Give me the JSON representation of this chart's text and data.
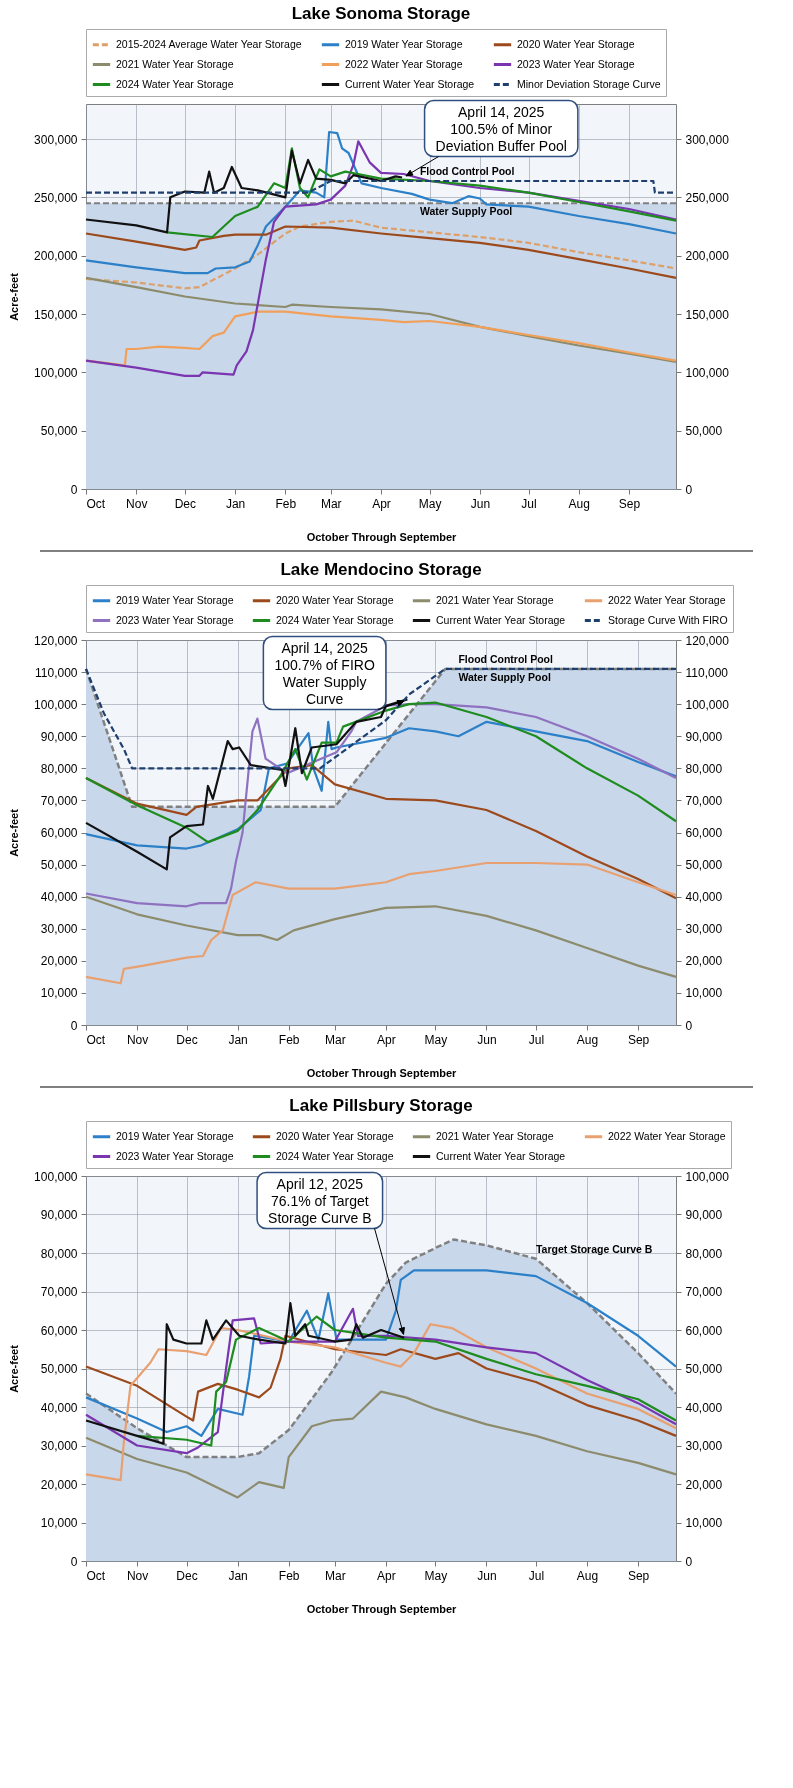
{
  "chart_data": [
    {
      "type": "line",
      "title": "Lake Sonoma Storage",
      "xlabel": "October Through September",
      "ylabel": "Acre-feet",
      "legend": "top",
      "grid": true,
      "xlim": [
        "2024-10-01",
        "2025-09-30"
      ],
      "xticks": [
        {
          "value": "2024-10-01",
          "label": "Oct"
        },
        {
          "value": "2024-11-01",
          "label": "Nov"
        },
        {
          "value": "2024-12-01",
          "label": "Dec"
        },
        {
          "value": "2025-01-01",
          "label": "Jan"
        },
        {
          "value": "2025-02-01",
          "label": "Feb"
        },
        {
          "value": "2025-03-01",
          "label": "Mar"
        },
        {
          "value": "2025-04-01",
          "label": "Apr"
        },
        {
          "value": "2025-05-01",
          "label": "May"
        },
        {
          "value": "2025-06-01",
          "label": "Jun"
        },
        {
          "value": "2025-07-01",
          "label": "Jul"
        },
        {
          "value": "2025-08-01",
          "label": "Aug"
        },
        {
          "value": "2025-09-01",
          "label": "Sep"
        }
      ],
      "ylim": [
        0,
        330000
      ],
      "yticks": [
        {
          "value": 0,
          "label": "0"
        },
        {
          "value": 50000,
          "label": "50,000"
        },
        {
          "value": 100000,
          "label": "100,000"
        },
        {
          "value": 150000,
          "label": "150,000"
        },
        {
          "value": 200000,
          "label": "200,000"
        },
        {
          "value": 250000,
          "label": "250,000"
        },
        {
          "value": 300000,
          "label": "300,000"
        }
      ],
      "y2lim": [
        0,
        330000
      ],
      "y2ticks": [
        {
          "value": 0,
          "label": "0"
        },
        {
          "value": 50000,
          "label": "50,000"
        },
        {
          "value": 100000,
          "label": "100,000"
        },
        {
          "value": 150000,
          "label": "150,000"
        },
        {
          "value": 200000,
          "label": "200,000"
        },
        {
          "value": 250000,
          "label": "250,000"
        },
        {
          "value": 300000,
          "label": "300,000"
        }
      ],
      "bands": [
        {
          "axis": "y",
          "from": 0,
          "to": 245000,
          "color": "#c9d7ea"
        }
      ],
      "ref_lines": [
        {
          "axis": "y",
          "value": 245000,
          "color": "#808080",
          "line_style": "dashed"
        }
      ],
      "series": [
        {
          "name": "2015-2024 Average Water Year Storage",
          "color": "#dda06a",
          "line_style": "dashed",
          "x": [
            "2024-10-01",
            "2024-11-01",
            "2024-12-01",
            "2024-12-10",
            "2025-01-01",
            "2025-01-15",
            "2025-02-01",
            "2025-02-10",
            "2025-03-01",
            "2025-03-15",
            "2025-04-01",
            "2025-05-01",
            "2025-06-01",
            "2025-07-01",
            "2025-08-01",
            "2025-09-01",
            "2025-09-30"
          ],
          "values": [
            180000,
            177000,
            172000,
            173000,
            189000,
            201000,
            219000,
            225000,
            229000,
            230000,
            224000,
            220000,
            216000,
            211000,
            203000,
            196000,
            189000
          ]
        },
        {
          "name": "2019 Water Year Storage",
          "color": "#2c80c8",
          "x": [
            "2024-10-01",
            "2024-11-01",
            "2024-12-01",
            "2024-12-15",
            "2024-12-20",
            "2025-01-01",
            "2025-01-10",
            "2025-01-15",
            "2025-01-20",
            "2025-02-01",
            "2025-02-10",
            "2025-02-20",
            "2025-02-25",
            "2025-02-28",
            "2025-03-05",
            "2025-03-08",
            "2025-03-12",
            "2025-03-20",
            "2025-04-01",
            "2025-04-20",
            "2025-05-01",
            "2025-05-15",
            "2025-05-25",
            "2025-06-01",
            "2025-06-05",
            "2025-07-01",
            "2025-08-01",
            "2025-09-01",
            "2025-09-30"
          ],
          "values": [
            196000,
            190000,
            185000,
            185000,
            189000,
            190000,
            195000,
            209000,
            225000,
            242000,
            256000,
            254000,
            250000,
            306000,
            305000,
            292000,
            288000,
            262000,
            258000,
            253000,
            248000,
            245000,
            251000,
            249000,
            244000,
            242000,
            234000,
            227000,
            219000
          ]
        },
        {
          "name": "2020 Water Year Storage",
          "color": "#9c4a1c",
          "x": [
            "2024-10-01",
            "2024-11-01",
            "2024-12-01",
            "2024-12-08",
            "2024-12-10",
            "2024-12-25",
            "2025-01-01",
            "2025-01-20",
            "2025-02-01",
            "2025-03-01",
            "2025-04-01",
            "2025-05-01",
            "2025-06-01",
            "2025-07-01",
            "2025-08-01",
            "2025-09-01",
            "2025-09-30"
          ],
          "values": [
            219000,
            212000,
            205000,
            207000,
            213000,
            217000,
            218000,
            218000,
            225000,
            224000,
            219000,
            215000,
            211000,
            205000,
            197000,
            189000,
            181000
          ]
        },
        {
          "name": "2021 Water Year Storage",
          "color": "#8c8c6c",
          "x": [
            "2024-10-01",
            "2024-11-01",
            "2024-12-01",
            "2025-01-01",
            "2025-02-01",
            "2025-02-05",
            "2025-03-01",
            "2025-04-01",
            "2025-05-01",
            "2025-06-01",
            "2025-07-01",
            "2025-08-01",
            "2025-09-01",
            "2025-09-30"
          ],
          "values": [
            181000,
            173000,
            165000,
            159000,
            156000,
            158000,
            156000,
            154000,
            150000,
            139000,
            131000,
            123000,
            116000,
            109000
          ]
        },
        {
          "name": "2022 Water Year Storage",
          "color": "#f0a05a",
          "x": [
            "2024-10-01",
            "2024-10-25",
            "2024-10-26",
            "2024-11-01",
            "2024-11-15",
            "2024-12-01",
            "2024-12-10",
            "2024-12-18",
            "2024-12-25",
            "2025-01-01",
            "2025-01-15",
            "2025-02-01",
            "2025-03-01",
            "2025-04-01",
            "2025-04-15",
            "2025-05-01",
            "2025-06-01",
            "2025-07-01",
            "2025-08-01",
            "2025-09-01",
            "2025-09-30"
          ],
          "values": [
            110000,
            106000,
            120000,
            120000,
            122000,
            121000,
            120000,
            131000,
            134000,
            148000,
            152000,
            152000,
            148000,
            145000,
            143000,
            144000,
            139000,
            132000,
            125000,
            117000,
            110000
          ]
        },
        {
          "name": "2023 Water Year Storage",
          "color": "#7a35b0",
          "x": [
            "2024-10-01",
            "2024-11-01",
            "2024-12-01",
            "2024-12-10",
            "2024-12-12",
            "2024-12-31",
            "2025-01-02",
            "2025-01-08",
            "2025-01-12",
            "2025-01-20",
            "2025-01-25",
            "2025-02-01",
            "2025-02-20",
            "2025-03-01",
            "2025-03-10",
            "2025-03-15",
            "2025-03-18",
            "2025-03-25",
            "2025-04-01",
            "2025-04-15",
            "2025-05-01",
            "2025-06-01",
            "2025-07-01",
            "2025-08-01",
            "2025-09-01",
            "2025-09-30"
          ],
          "values": [
            110000,
            104000,
            97000,
            97000,
            100000,
            98000,
            106000,
            118000,
            136000,
            197000,
            229000,
            242000,
            244000,
            248000,
            260000,
            278000,
            298000,
            280000,
            271000,
            270000,
            264000,
            258000,
            254000,
            247000,
            240000,
            231000
          ]
        },
        {
          "name": "2024 Water Year Storage",
          "color": "#1e8c1e",
          "x": [
            "2024-11-20",
            "2024-12-18",
            "2024-12-25",
            "2025-01-01",
            "2025-01-15",
            "2025-01-25",
            "2025-02-01",
            "2025-02-05",
            "2025-02-10",
            "2025-02-15",
            "2025-02-22",
            "2025-03-01",
            "2025-03-10",
            "2025-04-01",
            "2025-05-01",
            "2025-06-01",
            "2025-07-01",
            "2025-08-01",
            "2025-09-01",
            "2025-09-30"
          ],
          "values": [
            220000,
            216000,
            225000,
            234000,
            242000,
            262000,
            258000,
            292000,
            258000,
            250000,
            274000,
            268000,
            272000,
            266000,
            264000,
            260000,
            254000,
            246000,
            238000,
            230000
          ]
        },
        {
          "name": "Current Water Year Storage",
          "color": "#111111",
          "x": [
            "2024-10-01",
            "2024-11-01",
            "2024-11-20",
            "2024-11-22",
            "2024-12-01",
            "2024-12-13",
            "2024-12-16",
            "2024-12-19",
            "2024-12-25",
            "2024-12-30",
            "2025-01-05",
            "2025-01-15",
            "2025-02-01",
            "2025-02-05",
            "2025-02-10",
            "2025-02-15",
            "2025-02-20",
            "2025-03-01",
            "2025-03-10",
            "2025-03-15",
            "2025-04-01",
            "2025-04-10",
            "2025-04-14"
          ],
          "values": [
            231000,
            226000,
            220000,
            250000,
            255000,
            254000,
            272000,
            254000,
            258000,
            276000,
            258000,
            256000,
            250000,
            290000,
            262000,
            282000,
            266000,
            265000,
            262000,
            269000,
            264000,
            268000,
            267000
          ]
        },
        {
          "name": "Minor Deviation Storage Curve",
          "color": "#1f3f6e",
          "line_style": "dashed",
          "x": [
            "2024-10-01",
            "2025-02-15",
            "2025-03-01",
            "2025-09-16",
            "2025-09-17",
            "2025-09-30"
          ],
          "values": [
            254000,
            254000,
            264000,
            264000,
            254000,
            254000
          ]
        }
      ],
      "annotations": [
        {
          "text": "April 14, 2025\n100.5% of Minor\nDeviation Buffer Pool",
          "x": "2025-04-14",
          "y": 267000
        },
        {
          "text": "Flood Control Pool",
          "x": "2025-04-25",
          "y": 264000
        },
        {
          "text": "Water Supply Pool",
          "x": "2025-04-25",
          "y": 245000
        }
      ]
    },
    {
      "type": "line",
      "title": "Lake Mendocino Storage",
      "xlabel": "October Through September",
      "ylabel": "Acre-feet",
      "legend": "top",
      "grid": true,
      "xlim": [
        "2024-10-01",
        "2025-09-24"
      ],
      "xticks": [
        {
          "value": "2024-10-01",
          "label": "Oct"
        },
        {
          "value": "2024-11-01",
          "label": "Nov"
        },
        {
          "value": "2024-12-01",
          "label": "Dec"
        },
        {
          "value": "2025-01-01",
          "label": "Jan"
        },
        {
          "value": "2025-02-01",
          "label": "Feb"
        },
        {
          "value": "2025-03-01",
          "label": "Mar"
        },
        {
          "value": "2025-04-01",
          "label": "Apr"
        },
        {
          "value": "2025-05-01",
          "label": "May"
        },
        {
          "value": "2025-06-01",
          "label": "Jun"
        },
        {
          "value": "2025-07-01",
          "label": "Jul"
        },
        {
          "value": "2025-08-01",
          "label": "Aug"
        },
        {
          "value": "2025-09-01",
          "label": "Sep"
        }
      ],
      "ylim": [
        0,
        120000
      ],
      "yticks": [
        {
          "value": 0,
          "label": "0"
        },
        {
          "value": 10000,
          "label": "10,000"
        },
        {
          "value": 20000,
          "label": "20,000"
        },
        {
          "value": 30000,
          "label": "30,000"
        },
        {
          "value": 40000,
          "label": "40,000"
        },
        {
          "value": 50000,
          "label": "50,000"
        },
        {
          "value": 60000,
          "label": "60,000"
        },
        {
          "value": 70000,
          "label": "70,000"
        },
        {
          "value": 80000,
          "label": "80,000"
        },
        {
          "value": 90000,
          "label": "90,000"
        },
        {
          "value": 100000,
          "label": "100,000"
        },
        {
          "value": 110000,
          "label": "110,000"
        },
        {
          "value": 120000,
          "label": "120,000"
        }
      ],
      "y2lim": [
        0,
        120000
      ],
      "y2ticks": [
        {
          "value": 0,
          "label": "0"
        },
        {
          "value": 10000,
          "label": "10,000"
        },
        {
          "value": 20000,
          "label": "20,000"
        },
        {
          "value": 30000,
          "label": "30,000"
        },
        {
          "value": 40000,
          "label": "40,000"
        },
        {
          "value": 50000,
          "label": "50,000"
        },
        {
          "value": 60000,
          "label": "60,000"
        },
        {
          "value": 70000,
          "label": "70,000"
        },
        {
          "value": 80000,
          "label": "80,000"
        },
        {
          "value": 90000,
          "label": "90,000"
        },
        {
          "value": 100000,
          "label": "100,000"
        },
        {
          "value": 110000,
          "label": "110,000"
        },
        {
          "value": 120000,
          "label": "120,000"
        }
      ],
      "series": [
        {
          "type": "area",
          "color": "#c9d7ea",
          "line_style": "dashed",
          "x": [
            "2024-10-01",
            "2024-10-29",
            "2025-03-01",
            "2025-05-07",
            "2025-09-24"
          ],
          "values": [
            111000,
            68000,
            68000,
            111000,
            111000
          ]
        },
        {
          "name": "2019 Water Year Storage",
          "color": "#2c80c8",
          "x": [
            "2024-10-01",
            "2024-11-01",
            "2024-12-01",
            "2024-12-10",
            "2025-01-01",
            "2025-01-15",
            "2025-01-20",
            "2025-01-31",
            "2025-02-13",
            "2025-02-16",
            "2025-02-21",
            "2025-02-25",
            "2025-02-27",
            "2025-03-02",
            "2025-04-01",
            "2025-04-15",
            "2025-05-01",
            "2025-05-15",
            "2025-06-01",
            "2025-07-01",
            "2025-08-01",
            "2025-09-01",
            "2025-09-24"
          ],
          "values": [
            59500,
            56000,
            55000,
            56000,
            61000,
            67000,
            80000,
            81500,
            91000,
            80000,
            73000,
            94500,
            86000,
            86500,
            89500,
            92500,
            91500,
            90000,
            94500,
            91500,
            88500,
            82000,
            77500
          ]
        },
        {
          "name": "2020 Water Year Storage",
          "color": "#9c4a1c",
          "x": [
            "2024-10-01",
            "2024-11-01",
            "2024-12-01",
            "2024-12-07",
            "2025-01-01",
            "2025-01-13",
            "2025-02-01",
            "2025-02-15",
            "2025-03-01",
            "2025-04-01",
            "2025-05-01",
            "2025-06-01",
            "2025-07-01",
            "2025-08-01",
            "2025-09-01",
            "2025-09-24"
          ],
          "values": [
            77000,
            69000,
            65500,
            68000,
            70000,
            70000,
            80000,
            81000,
            75000,
            70500,
            70000,
            67000,
            60500,
            52500,
            45500,
            39500
          ]
        },
        {
          "name": "2021 Water Year Storage",
          "color": "#8c8c6c",
          "x": [
            "2024-10-01",
            "2024-11-01",
            "2024-12-01",
            "2025-01-01",
            "2025-01-15",
            "2025-01-25",
            "2025-02-04",
            "2025-03-01",
            "2025-04-01",
            "2025-05-01",
            "2025-06-01",
            "2025-07-01",
            "2025-08-01",
            "2025-09-01",
            "2025-09-24"
          ],
          "values": [
            40000,
            34500,
            31000,
            28000,
            28000,
            26500,
            29500,
            33000,
            36500,
            37000,
            34000,
            29500,
            24000,
            18500,
            15000
          ]
        },
        {
          "name": "2022 Water Year Storage",
          "color": "#e8a070",
          "x": [
            "2024-10-01",
            "2024-10-22",
            "2024-10-24",
            "2024-11-05",
            "2024-12-01",
            "2024-12-11",
            "2024-12-16",
            "2024-12-23",
            "2024-12-29",
            "2025-01-12",
            "2025-02-01",
            "2025-03-01",
            "2025-04-01",
            "2025-04-15",
            "2025-05-01",
            "2025-06-01",
            "2025-07-01",
            "2025-08-01",
            "2025-09-01",
            "2025-09-24"
          ],
          "values": [
            15000,
            13000,
            17500,
            18500,
            21000,
            21500,
            26500,
            29500,
            40500,
            44500,
            42500,
            42500,
            44500,
            47000,
            48000,
            50500,
            50500,
            50000,
            44500,
            40500
          ]
        },
        {
          "name": "2023 Water Year Storage",
          "color": "#8e72c0",
          "x": [
            "2024-10-01",
            "2024-11-01",
            "2024-12-01",
            "2024-12-09",
            "2024-12-25",
            "2024-12-28",
            "2024-12-31",
            "2025-01-04",
            "2025-01-10",
            "2025-01-13",
            "2025-01-18",
            "2025-01-31",
            "2025-03-02",
            "2025-03-11",
            "2025-03-14",
            "2025-04-01",
            "2025-04-15",
            "2025-05-01",
            "2025-06-01",
            "2025-07-01",
            "2025-08-01",
            "2025-09-01",
            "2025-09-24"
          ],
          "values": [
            41000,
            38000,
            37000,
            38000,
            38000,
            42500,
            51000,
            60000,
            91500,
            95500,
            83000,
            78500,
            85000,
            91500,
            94500,
            99500,
            100000,
            100000,
            99000,
            96000,
            90000,
            83000,
            77000
          ]
        },
        {
          "name": "2024 Water Year Storage",
          "color": "#1e8c1e",
          "x": [
            "2024-10-01",
            "2024-11-01",
            "2024-12-01",
            "2024-12-14",
            "2025-01-01",
            "2025-01-13",
            "2025-01-28",
            "2025-02-05",
            "2025-02-12",
            "2025-02-21",
            "2025-03-02",
            "2025-03-06",
            "2025-04-01",
            "2025-04-15",
            "2025-05-01",
            "2025-06-01",
            "2025-07-01",
            "2025-08-01",
            "2025-09-01",
            "2025-09-24"
          ],
          "values": [
            77000,
            68500,
            61500,
            57000,
            60500,
            67000,
            78500,
            86000,
            76500,
            88000,
            88000,
            93000,
            98000,
            100000,
            100500,
            96000,
            90000,
            80000,
            71500,
            63500
          ]
        },
        {
          "name": "Current Water Year Storage",
          "color": "#111111",
          "x": [
            "2024-10-01",
            "2024-11-01",
            "2024-11-19",
            "2024-11-21",
            "2024-12-01",
            "2024-12-11",
            "2024-12-14",
            "2024-12-17",
            "2024-12-26",
            "2024-12-29",
            "2025-01-02",
            "2025-01-09",
            "2025-01-28",
            "2025-01-30",
            "2025-02-05",
            "2025-02-09",
            "2025-02-15",
            "2025-03-02",
            "2025-03-14",
            "2025-03-29",
            "2025-04-01",
            "2025-04-14"
          ],
          "values": [
            63000,
            54000,
            48500,
            58500,
            62000,
            62500,
            74500,
            70500,
            88500,
            86000,
            86500,
            81000,
            79500,
            74500,
            92500,
            78500,
            86500,
            87500,
            94500,
            96000,
            99500,
            101500
          ]
        },
        {
          "name": "Storage Curve With FIRO",
          "color": "#1f3f6e",
          "line_style": "dashed",
          "x": [
            "2024-10-01",
            "2024-10-12",
            "2024-10-24",
            "2024-10-29",
            "2025-02-20",
            "2025-04-01",
            "2025-04-15",
            "2025-05-07",
            "2025-09-24"
          ],
          "values": [
            111000,
            97000,
            86000,
            80000,
            80000,
            95000,
            103000,
            111000,
            111000
          ]
        }
      ],
      "annotations": [
        {
          "text": "April 14, 2025\n100.7% of FIRO\nWater Supply\nCurve",
          "x": "2025-04-14",
          "y": 101500
        },
        {
          "text": "Flood Control Pool",
          "x": "2025-05-15",
          "y": 111000
        },
        {
          "text": "Water Supply Pool",
          "x": "2025-05-15",
          "y": 111000
        }
      ]
    },
    {
      "type": "line",
      "title": "Lake Pillsbury Storage",
      "xlabel": "October Through September",
      "ylabel": "Acre-feet",
      "legend": "top",
      "grid": true,
      "xlim": [
        "2024-10-01",
        "2025-09-24"
      ],
      "xticks": [
        {
          "value": "2024-10-01",
          "label": "Oct"
        },
        {
          "value": "2024-11-01",
          "label": "Nov"
        },
        {
          "value": "2024-12-01",
          "label": "Dec"
        },
        {
          "value": "2025-01-01",
          "label": "Jan"
        },
        {
          "value": "2025-02-01",
          "label": "Feb"
        },
        {
          "value": "2025-03-01",
          "label": "Mar"
        },
        {
          "value": "2025-04-01",
          "label": "Apr"
        },
        {
          "value": "2025-05-01",
          "label": "May"
        },
        {
          "value": "2025-06-01",
          "label": "Jun"
        },
        {
          "value": "2025-07-01",
          "label": "Jul"
        },
        {
          "value": "2025-08-01",
          "label": "Aug"
        },
        {
          "value": "2025-09-01",
          "label": "Sep"
        }
      ],
      "ylim": [
        0,
        100000
      ],
      "yticks": [
        {
          "value": 0,
          "label": "0"
        },
        {
          "value": 10000,
          "label": "10,000"
        },
        {
          "value": 20000,
          "label": "20,000"
        },
        {
          "value": 30000,
          "label": "30,000"
        },
        {
          "value": 40000,
          "label": "40,000"
        },
        {
          "value": 50000,
          "label": "50,000"
        },
        {
          "value": 60000,
          "label": "60,000"
        },
        {
          "value": 70000,
          "label": "70,000"
        },
        {
          "value": 80000,
          "label": "80,000"
        },
        {
          "value": 90000,
          "label": "90,000"
        },
        {
          "value": 100000,
          "label": "100,000"
        }
      ],
      "y2lim": [
        0,
        100000
      ],
      "y2ticks": [
        {
          "value": 0,
          "label": "0"
        },
        {
          "value": 10000,
          "label": "10,000"
        },
        {
          "value": 20000,
          "label": "20,000"
        },
        {
          "value": 30000,
          "label": "30,000"
        },
        {
          "value": 40000,
          "label": "40,000"
        },
        {
          "value": 50000,
          "label": "50,000"
        },
        {
          "value": 60000,
          "label": "60,000"
        },
        {
          "value": 70000,
          "label": "70,000"
        },
        {
          "value": 80000,
          "label": "80,000"
        },
        {
          "value": 90000,
          "label": "90,000"
        },
        {
          "value": 100000,
          "label": "100,000"
        }
      ],
      "series": [
        {
          "type": "area",
          "color": "#c9d7ea",
          "line_style": "dashed",
          "x": [
            "2024-10-01",
            "2024-11-01",
            "2024-12-01",
            "2025-01-01",
            "2025-01-14",
            "2025-02-01",
            "2025-02-27",
            "2025-04-01",
            "2025-04-13",
            "2025-05-02",
            "2025-05-12",
            "2025-06-01",
            "2025-07-01",
            "2025-08-01",
            "2025-09-01",
            "2025-09-24"
          ],
          "values": [
            43500,
            34500,
            27000,
            27000,
            28000,
            34000,
            49000,
            72000,
            77500,
            81500,
            83500,
            82000,
            78500,
            67000,
            54000,
            43500
          ]
        },
        {
          "name": "2019 Water Year Storage",
          "color": "#2c80c8",
          "x": [
            "2024-10-01",
            "2024-11-01",
            "2024-11-19",
            "2024-12-01",
            "2024-12-10",
            "2024-12-20",
            "2025-01-04",
            "2025-01-08",
            "2025-01-11",
            "2025-02-01",
            "2025-02-12",
            "2025-02-19",
            "2025-02-25",
            "2025-03-02",
            "2025-04-01",
            "2025-04-07",
            "2025-04-10",
            "2025-04-18",
            "2025-05-01",
            "2025-06-01",
            "2025-07-01",
            "2025-08-01",
            "2025-09-01",
            "2025-09-24"
          ],
          "values": [
            42500,
            37000,
            33500,
            35000,
            32500,
            39500,
            38000,
            48000,
            58500,
            57000,
            65000,
            57500,
            69500,
            57500,
            57500,
            65000,
            73000,
            75500,
            75500,
            75500,
            74000,
            67000,
            58500,
            50500
          ]
        },
        {
          "name": "2020 Water Year Storage",
          "color": "#9c4a1c",
          "x": [
            "2024-10-01",
            "2024-11-01",
            "2024-12-01",
            "2024-12-05",
            "2024-12-08",
            "2024-12-20",
            "2025-01-01",
            "2025-01-14",
            "2025-01-21",
            "2025-01-27",
            "2025-01-30",
            "2025-03-01",
            "2025-04-01",
            "2025-04-10",
            "2025-05-01",
            "2025-05-15",
            "2025-06-01",
            "2025-07-01",
            "2025-08-01",
            "2025-09-01",
            "2025-09-24"
          ],
          "values": [
            50500,
            45500,
            37500,
            36500,
            44000,
            46000,
            44500,
            42500,
            45000,
            52500,
            58500,
            55000,
            53500,
            55000,
            52500,
            54000,
            50000,
            46500,
            40500,
            36500,
            32500
          ]
        },
        {
          "name": "2021 Water Year Storage",
          "color": "#8c8c6c",
          "x": [
            "2024-10-01",
            "2024-11-01",
            "2024-12-01",
            "2025-01-01",
            "2025-01-14",
            "2025-01-29",
            "2025-02-01",
            "2025-02-15",
            "2025-02-27",
            "2025-03-12",
            "2025-03-29",
            "2025-04-13",
            "2025-05-01",
            "2025-06-01",
            "2025-07-01",
            "2025-08-01",
            "2025-09-01",
            "2025-09-24"
          ],
          "values": [
            32000,
            26500,
            23000,
            16500,
            20500,
            19000,
            27000,
            35000,
            36500,
            37000,
            44000,
            42500,
            39500,
            35500,
            32500,
            28500,
            25500,
            22500
          ]
        },
        {
          "name": "2022 Water Year Storage",
          "color": "#e8a070",
          "x": [
            "2024-10-01",
            "2024-10-22",
            "2024-10-24",
            "2024-10-28",
            "2024-11-09",
            "2024-11-14",
            "2024-12-01",
            "2024-12-13",
            "2024-12-22",
            "2025-01-01",
            "2025-02-01",
            "2025-03-01",
            "2025-04-01",
            "2025-04-10",
            "2025-04-18",
            "2025-04-28",
            "2025-05-11",
            "2025-06-01",
            "2025-07-01",
            "2025-08-01",
            "2025-09-01",
            "2025-09-24"
          ],
          "values": [
            22500,
            21000,
            31000,
            45500,
            51500,
            55000,
            54500,
            53500,
            60500,
            60000,
            57000,
            55500,
            51500,
            50500,
            54000,
            61500,
            60500,
            55500,
            50000,
            43500,
            39500,
            34500
          ]
        },
        {
          "name": "2023 Water Year Storage",
          "color": "#7a35b0",
          "x": [
            "2024-10-01",
            "2024-11-01",
            "2024-12-01",
            "2024-12-08",
            "2024-12-20",
            "2024-12-25",
            "2024-12-29",
            "2025-01-11",
            "2025-01-15",
            "2025-02-01",
            "2025-03-01",
            "2025-03-12",
            "2025-03-15",
            "2025-04-01",
            "2025-05-01",
            "2025-06-01",
            "2025-07-01",
            "2025-08-01",
            "2025-09-01",
            "2025-09-24"
          ],
          "values": [
            38000,
            30000,
            28000,
            29500,
            33500,
            50000,
            62500,
            63000,
            56500,
            57000,
            57000,
            65500,
            58500,
            58500,
            57500,
            55500,
            54000,
            47000,
            41000,
            35500
          ]
        },
        {
          "name": "2024 Water Year Storage",
          "color": "#1e8c1e",
          "x": [
            "2024-11-01",
            "2024-12-01",
            "2024-12-16",
            "2024-12-19",
            "2024-12-25",
            "2024-12-31",
            "2025-01-14",
            "2025-02-01",
            "2025-02-18",
            "2025-03-01",
            "2025-04-01",
            "2025-05-01",
            "2025-06-01",
            "2025-07-01",
            "2025-08-01",
            "2025-09-01",
            "2025-09-24"
          ],
          "values": [
            32500,
            31500,
            30000,
            44000,
            46500,
            57500,
            60500,
            57000,
            63500,
            60000,
            58000,
            57000,
            52500,
            48500,
            45500,
            42000,
            36500
          ]
        },
        {
          "name": "Current Water Year Storage",
          "color": "#111111",
          "x": [
            "2024-10-01",
            "2024-11-01",
            "2024-11-17",
            "2024-11-19",
            "2024-11-23",
            "2024-12-01",
            "2024-12-10",
            "2024-12-13",
            "2024-12-17",
            "2024-12-25",
            "2025-01-02",
            "2025-01-14",
            "2025-01-30",
            "2025-02-02",
            "2025-02-05",
            "2025-02-11",
            "2025-02-13",
            "2025-03-01",
            "2025-03-11",
            "2025-03-14",
            "2025-03-18",
            "2025-03-29",
            "2025-04-12"
          ],
          "values": [
            36500,
            32500,
            30500,
            61500,
            57500,
            56500,
            56500,
            62500,
            57500,
            62500,
            58500,
            57500,
            56500,
            67000,
            58500,
            61500,
            58500,
            57000,
            57500,
            61500,
            58000,
            60000,
            58000
          ]
        }
      ],
      "annotations": [
        {
          "text": "April 12, 2025\n76.1% of Target\nStorage Curve B",
          "x": "2025-04-12",
          "y": 58000
        },
        {
          "text": "Target Storage Curve B",
          "x": "2025-07-01",
          "y": 78500
        }
      ]
    }
  ]
}
